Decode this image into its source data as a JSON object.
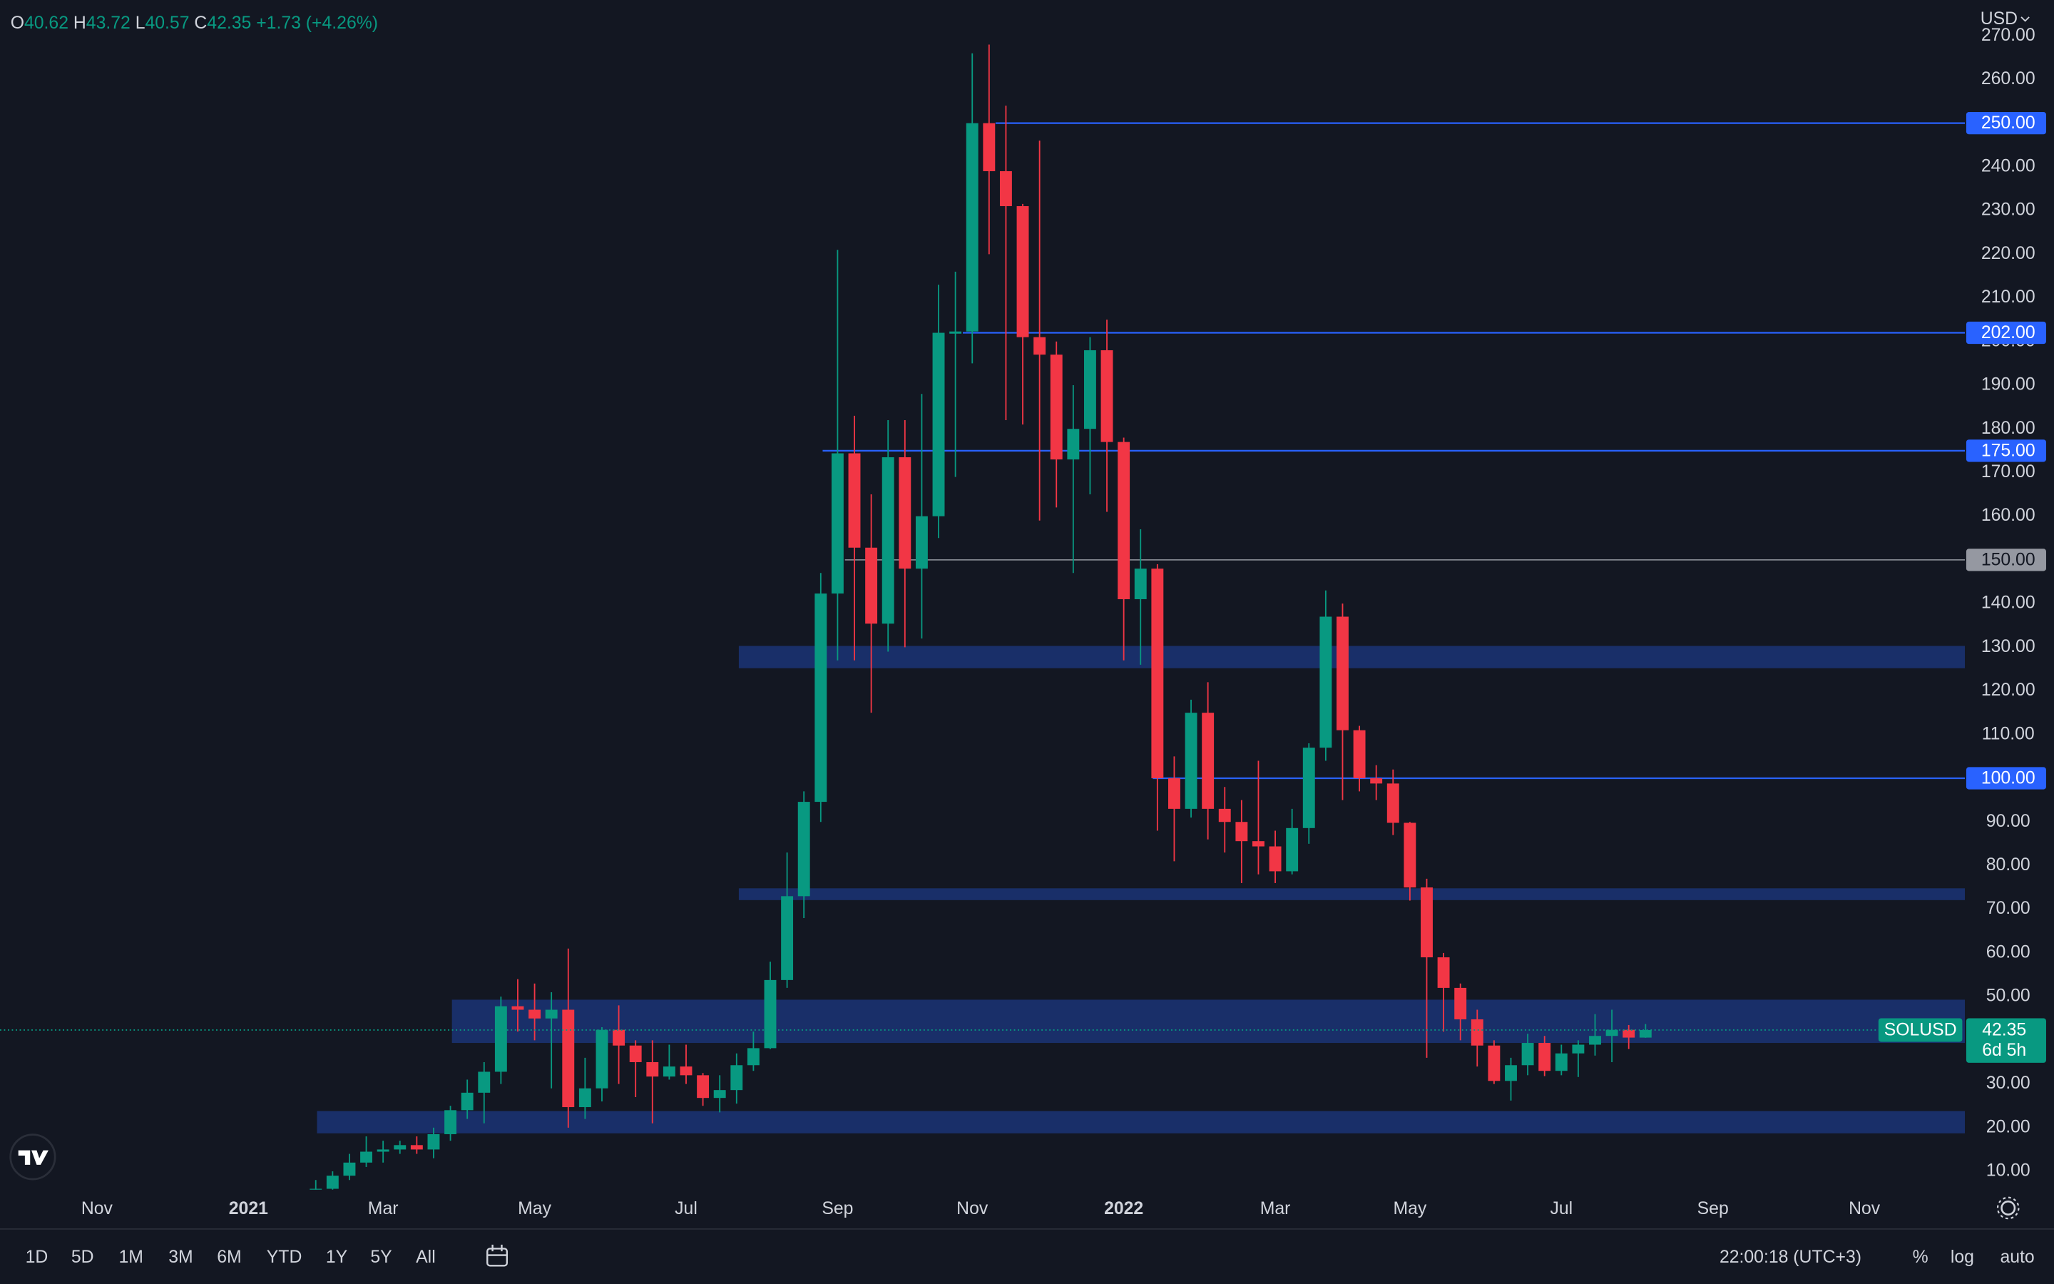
{
  "header": {
    "open_label": "O",
    "open": "40.62",
    "high_label": "H",
    "high": "43.72",
    "low_label": "L",
    "low": "40.57",
    "close_label": "C",
    "close": "42.35",
    "change": "+1.73 (+4.26%)"
  },
  "currency": "USD",
  "chart_data": {
    "type": "candlestick",
    "categories": [
      "Nov",
      null,
      null,
      null,
      null,
      null,
      null,
      null,
      null,
      "2021",
      null,
      null,
      null,
      null,
      null,
      null,
      null,
      "Mar",
      null,
      null,
      null,
      null,
      null,
      null,
      null,
      null,
      "May",
      null,
      null,
      null,
      null,
      null,
      null,
      null,
      null,
      "Jul",
      null,
      null,
      null,
      null,
      null,
      null,
      null,
      null,
      "Sep",
      null,
      null,
      null,
      null,
      null,
      null,
      null,
      "Nov",
      null,
      null,
      null,
      null,
      null,
      null,
      null,
      null,
      "2022",
      null,
      null,
      null,
      null,
      null,
      null,
      null,
      null,
      "Mar",
      null,
      null,
      null,
      null,
      null,
      null,
      null,
      "May",
      null,
      null,
      null,
      null,
      null,
      null,
      null,
      null,
      "Jul",
      null,
      null,
      null,
      null,
      null,
      null,
      null,
      null,
      "Sep",
      null,
      null,
      null,
      null,
      null,
      null,
      null,
      null,
      "Nov"
    ],
    "open": [
      null,
      null,
      null,
      null,
      null,
      null,
      null,
      null,
      null,
      null,
      null,
      null,
      null,
      5,
      6,
      9,
      12,
      14.5,
      15,
      16,
      15,
      18.5,
      24,
      28,
      32.8,
      47.8,
      47,
      45,
      47,
      24.7,
      29,
      42.4,
      38.8,
      35,
      31.7,
      34,
      32,
      26.8,
      28.6,
      34.3,
      38.2,
      53.8,
      73,
      94.6,
      142.3,
      174.4,
      152.8,
      135.4,
      173.5,
      148,
      160,
      201.8,
      202.3,
      250,
      239,
      231,
      201,
      197,
      173,
      180,
      198,
      177,
      141,
      148,
      100,
      93,
      115,
      93,
      90,
      85.6,
      84.4,
      78.7,
      88.6,
      107,
      137,
      111,
      100,
      98.8,
      89.8,
      75,
      59,
      52,
      44.8,
      38.8,
      30.7,
      34.3,
      39.4,
      33,
      37,
      39,
      41,
      42.4,
      40.62,
      null,
      null,
      null,
      null,
      null,
      null,
      null,
      null,
      null,
      null,
      null,
      null,
      null
    ],
    "high": [
      null,
      null,
      null,
      null,
      null,
      null,
      null,
      null,
      null,
      null,
      null,
      null,
      null,
      8,
      10,
      14,
      18,
      17,
      17,
      18,
      20,
      25,
      31,
      35,
      50,
      54,
      53,
      51,
      61,
      36,
      43,
      48,
      40,
      40,
      39,
      39,
      32.5,
      32,
      37,
      42,
      58,
      83,
      97,
      147,
      221,
      183,
      165,
      182,
      182,
      188,
      213,
      216,
      266,
      268,
      254,
      231.5,
      246,
      200,
      190,
      201,
      205,
      178,
      157,
      149,
      105,
      118,
      122,
      98,
      95,
      104,
      88,
      93,
      108,
      143,
      140,
      112,
      103,
      102,
      90,
      77,
      60,
      53,
      47,
      40,
      36,
      41.5,
      41,
      39,
      40,
      46,
      47,
      43.5,
      43.72,
      null,
      null,
      null,
      null,
      null,
      null,
      null,
      null,
      null,
      null,
      null,
      null,
      null
    ],
    "low": [
      null,
      null,
      null,
      null,
      null,
      null,
      null,
      null,
      null,
      null,
      null,
      null,
      null,
      4,
      5,
      8,
      11,
      12,
      14,
      14,
      13,
      17,
      22,
      21,
      30,
      42,
      40,
      29,
      20,
      22,
      26,
      30,
      27,
      21,
      31,
      30,
      25,
      23.5,
      25.5,
      33,
      38,
      52,
      68,
      90,
      127,
      127,
      115,
      129,
      130,
      132,
      155,
      169,
      195,
      220,
      182,
      181,
      159,
      162,
      147,
      165,
      161,
      127,
      126,
      88,
      81,
      91,
      86,
      83,
      76,
      78,
      76,
      78,
      85,
      104,
      95,
      97,
      95,
      87,
      72,
      36,
      42,
      40,
      34,
      30,
      26.2,
      32,
      31.8,
      32,
      31.6,
      36.5,
      35,
      38,
      40.57,
      null,
      null,
      null,
      null,
      null,
      null,
      null,
      null,
      null,
      null,
      null,
      null,
      null
    ],
    "close": [
      null,
      null,
      null,
      null,
      null,
      null,
      null,
      null,
      null,
      null,
      null,
      null,
      null,
      6,
      9,
      12,
      14.5,
      15,
      16,
      15,
      18.5,
      24,
      28,
      32.8,
      47.8,
      47,
      45,
      47,
      24.7,
      29,
      42.4,
      38.8,
      35,
      31.7,
      34,
      32,
      26.8,
      28.6,
      34.3,
      38.2,
      53.8,
      73,
      94.6,
      142.3,
      174.4,
      152.8,
      135.4,
      173.5,
      148,
      160,
      202,
      202.3,
      250,
      239,
      231,
      201,
      197,
      173,
      180,
      198,
      177,
      141,
      148,
      100,
      93,
      115,
      93,
      90,
      85.6,
      84.4,
      78.7,
      88.6,
      107,
      137,
      111,
      100,
      98.8,
      89.8,
      75,
      59,
      52,
      44.8,
      38.8,
      30.7,
      34.3,
      39.4,
      33,
      37,
      39,
      41,
      42.4,
      40.62,
      42.35,
      null,
      null,
      null,
      null,
      null,
      null,
      null,
      null,
      null,
      null,
      null,
      null,
      null
    ],
    "up_color": "#089981",
    "down_color": "#f23645",
    "ylim": [
      5.8,
      278.2
    ],
    "yticks": [
      {
        "value": 10,
        "label": "10.00"
      },
      {
        "value": 20,
        "label": "20.00"
      },
      {
        "value": 30,
        "label": "30.00"
      },
      {
        "value": 40,
        "label": "40.00"
      },
      {
        "value": 50,
        "label": "50.00"
      },
      {
        "value": 60,
        "label": "60.00"
      },
      {
        "value": 70,
        "label": "70.00"
      },
      {
        "value": 80,
        "label": "80.00"
      },
      {
        "value": 90,
        "label": "90.00"
      },
      {
        "value": 100,
        "label": "100.00"
      },
      {
        "value": 110,
        "label": "110.00"
      },
      {
        "value": 120,
        "label": "120.00"
      },
      {
        "value": 130,
        "label": "130.00"
      },
      {
        "value": 140,
        "label": "140.00"
      },
      {
        "value": 150,
        "label": "150.00"
      },
      {
        "value": 160,
        "label": "160.00"
      },
      {
        "value": 170,
        "label": "170.00"
      },
      {
        "value": 180,
        "label": "180.00"
      },
      {
        "value": 190,
        "label": "190.00"
      },
      {
        "value": 200,
        "label": "200.00"
      },
      {
        "value": 210,
        "label": "210.00"
      },
      {
        "value": 220,
        "label": "220.00"
      },
      {
        "value": 230,
        "label": "230.00"
      },
      {
        "value": 240,
        "label": "240.00"
      },
      {
        "value": 250,
        "label": "250.00"
      },
      {
        "value": 260,
        "label": "260.00"
      },
      {
        "value": 270,
        "label": "270.00"
      }
    ],
    "zones": [
      {
        "low": 39.4,
        "high": 49.3
      },
      {
        "low": 18.7,
        "high": 23.8
      },
      {
        "low": 72.1,
        "high": 74.8
      },
      {
        "low": 125.2,
        "high": 130.3
      }
    ],
    "zone_color": "rgba(41,98,255,0.32)",
    "levels": [
      {
        "value": 250,
        "label": "250.00",
        "color": "#2962ff"
      },
      {
        "value": 202,
        "label": "202.00",
        "color": "#2962ff"
      },
      {
        "value": 175,
        "label": "175.00",
        "color": "#2962ff"
      },
      {
        "value": 150,
        "label": "150.00",
        "color": "#9598a1"
      },
      {
        "value": 100,
        "label": "100.00",
        "color": "#2962ff"
      }
    ],
    "last": {
      "symbol": "SOLUSD",
      "price": "42.35",
      "countdown": "6d 5h"
    },
    "grid": false
  },
  "toolbar": {
    "ranges": [
      "1D",
      "5D",
      "1M",
      "3M",
      "6M",
      "YTD",
      "1Y",
      "5Y",
      "All"
    ],
    "clock": "22:00:18 (UTC+3)",
    "options": [
      "%",
      "log",
      "auto"
    ]
  }
}
